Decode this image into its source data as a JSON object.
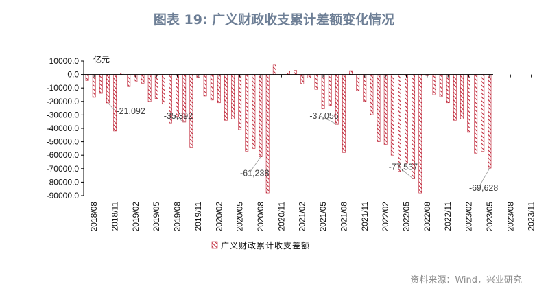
{
  "title": "图表 19: 广义财政收支累计差额变化情况",
  "source": "资料来源：Wind，兴业研究",
  "chart_data": {
    "type": "bar",
    "unit": "亿元",
    "ylim": [
      -90000,
      10000
    ],
    "ytick_values": [
      10000,
      0,
      -10000,
      -20000,
      -30000,
      -40000,
      -50000,
      -60000,
      -70000,
      -80000,
      -90000
    ],
    "ytick_labels": [
      "10000.0",
      "0.0",
      "-10000.0",
      "-20000.0",
      "-30000.0",
      "-40000.0",
      "-50000.0",
      "-60000.0",
      "-70000.0",
      "-80000.0",
      "-90000.0"
    ],
    "xtick_labels": [
      "2018/08",
      "2018/11",
      "2019/02",
      "2019/05",
      "2019/08",
      "2019/11",
      "2020/02",
      "2020/05",
      "2020/08",
      "2020/11",
      "2021/02",
      "2021/05",
      "2021/08",
      "2021/11",
      "2022/02",
      "2022/05",
      "2022/08",
      "2022/11",
      "2023/02",
      "2023/05",
      "2023/08",
      "2023/11"
    ],
    "grid": false,
    "legend_position": "bottom",
    "series": [
      {
        "name": "广义财政累计收支差额",
        "color": "#c0283a",
        "values": [
          -4500,
          -17000,
          -14000,
          -21092,
          -42000,
          1000,
          -9000,
          -5500,
          -6500,
          -20000,
          -18000,
          -22000,
          -36000,
          -31000,
          -35392,
          -54000,
          -2000,
          -16000,
          -19000,
          -21000,
          -34000,
          -33000,
          -41000,
          -57000,
          -55000,
          -61238,
          -88000,
          7500,
          0,
          2500,
          3000,
          -7000,
          -2500,
          -11000,
          -25500,
          -23000,
          -37056,
          -58000,
          2800,
          -12000,
          -20000,
          -30000,
          -50000,
          -52000,
          -60000,
          -72000,
          -66000,
          -77537,
          -88000,
          -800,
          -15000,
          -16500,
          -21000,
          -34000,
          -33000,
          -43000,
          -58500,
          -57000,
          -69628
        ]
      }
    ],
    "annotations": [
      {
        "text": "-21,092",
        "index": 3
      },
      {
        "text": "-35,392",
        "index": 14
      },
      {
        "text": "-61,238",
        "index": 25
      },
      {
        "text": "-37,056",
        "index": 36
      },
      {
        "text": "-77,537",
        "index": 47
      },
      {
        "text": "-69,628",
        "index": 58
      }
    ]
  }
}
